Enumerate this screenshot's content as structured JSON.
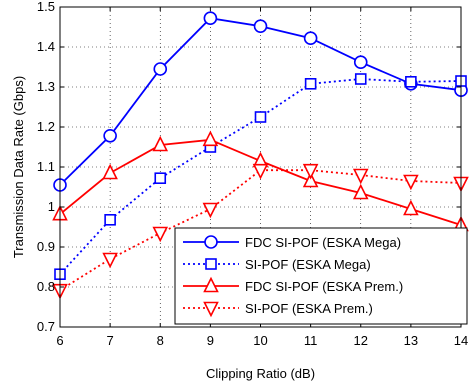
{
  "chart_data": {
    "type": "line",
    "title": "",
    "xlabel": "Clipping Ratio (dB)",
    "ylabel": "Transmission Data Rate (Gbps)",
    "x": [
      6,
      7,
      8,
      9,
      10,
      11,
      12,
      13,
      14
    ],
    "xlim": [
      6,
      14
    ],
    "ylim": [
      0.7,
      1.5
    ],
    "xticks": [
      "6",
      "7",
      "8",
      "9",
      "10",
      "11",
      "12",
      "13",
      "14"
    ],
    "yticks": [
      "0.7",
      "0.8",
      "0.9",
      "1",
      "1.1",
      "1.2",
      "1.3",
      "1.4",
      "1.5"
    ],
    "grid": true,
    "legend_position": "bottom-right",
    "series": [
      {
        "name": "FDC SI-POF (ESKA Mega)",
        "color": "#0000ff",
        "line": "solid",
        "marker": "circle",
        "values": [
          1.055,
          1.178,
          1.345,
          1.472,
          1.452,
          1.422,
          1.362,
          1.308,
          1.292
        ]
      },
      {
        "name": "SI-POF (ESKA Mega)",
        "color": "#0000ff",
        "line": "dotted",
        "marker": "square",
        "values": [
          0.832,
          0.968,
          1.072,
          1.15,
          1.225,
          1.308,
          1.32,
          1.313,
          1.315
        ]
      },
      {
        "name": "FDC SI-POF (ESKA Prem.)",
        "color": "#ff0000",
        "line": "solid",
        "marker": "triangle-up",
        "values": [
          0.982,
          1.085,
          1.155,
          1.168,
          1.115,
          1.065,
          1.035,
          0.995,
          0.955
        ]
      },
      {
        "name": "SI-POF (ESKA Prem.)",
        "color": "#ff0000",
        "line": "dotted",
        "marker": "triangle-down",
        "values": [
          0.792,
          0.87,
          0.935,
          0.995,
          1.092,
          1.092,
          1.08,
          1.065,
          1.06
        ]
      }
    ]
  }
}
